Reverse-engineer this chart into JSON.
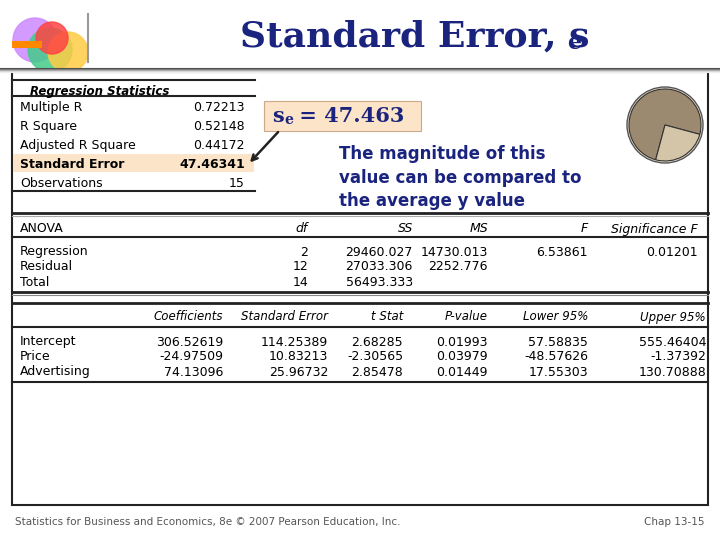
{
  "title": "Standard Error, s",
  "title_sub": "e",
  "reg_stats_label": "Regression Statistics",
  "reg_stats": [
    [
      "Multiple R",
      "0.72213"
    ],
    [
      "R Square",
      "0.52148"
    ],
    [
      "Adjusted R Square",
      "0.44172"
    ],
    [
      "Standard Error",
      "47.46341"
    ],
    [
      "Observations",
      "15"
    ]
  ],
  "highlight_row": 3,
  "highlight_bg": "#fce4c8",
  "anova_headers": [
    "ANOVA",
    "df",
    "SS",
    "MS",
    "F",
    "Significance F"
  ],
  "anova_rows": [
    [
      "Regression",
      "2",
      "29460.027",
      "14730.013",
      "6.53861",
      "0.01201"
    ],
    [
      "Residual",
      "12",
      "27033.306",
      "2252.776",
      "",
      ""
    ],
    [
      "Total",
      "14",
      "56493.333",
      "",
      "",
      ""
    ]
  ],
  "coef_headers": [
    "",
    "Coefficients",
    "Standard Error",
    "t Stat",
    "P-value",
    "Lower 95%",
    "Upper 95%"
  ],
  "coef_rows": [
    [
      "Intercept",
      "306.52619",
      "114.25389",
      "2.68285",
      "0.01993",
      "57.58835",
      "555.46404"
    ],
    [
      "Price",
      "-24.97509",
      "10.83213",
      "-2.30565",
      "0.03979",
      "-48.57626",
      "-1.37392"
    ],
    [
      "Advertising",
      "74.13096",
      "25.96732",
      "2.85478",
      "0.01449",
      "17.55303",
      "130.70888"
    ]
  ],
  "annotation_note": "The magnitude of this\nvalue can be compared to\nthe average y value",
  "footer_left": "Statistics for Business and Economics, 8e © 2007 Pearson Education, Inc.",
  "footer_right": "Chap 13-15",
  "title_color": "#1a237e",
  "annotation_color": "#1a237e",
  "annotation_bg": "#fce4c8",
  "slide_bg": "#c8c8d4",
  "content_bg": "#ffffff"
}
